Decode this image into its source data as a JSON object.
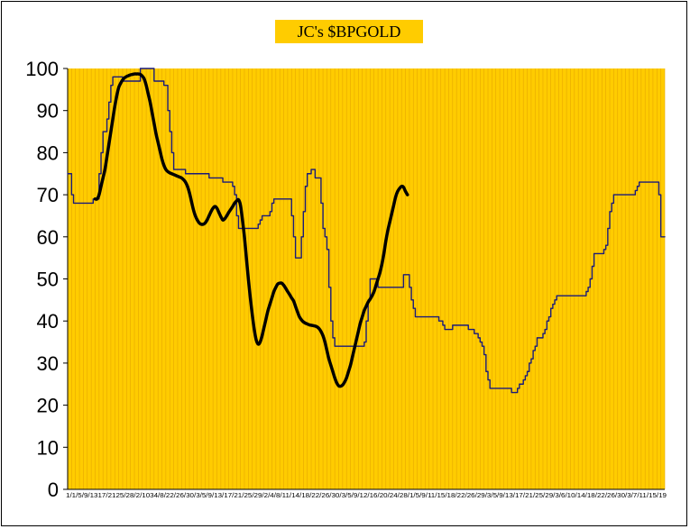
{
  "chart_data": {
    "type": "line",
    "title": "JC's $BPGOLD",
    "xlabel": "",
    "ylabel": "",
    "ylim": [
      0,
      100
    ],
    "yticks": [
      0,
      10,
      20,
      30,
      40,
      50,
      60,
      70,
      80,
      90,
      100
    ],
    "xtick_labels": [
      "1/1/5/9/1317/2125/28/2/1034/8/22/26/30/3/5/9/13/17/21/25/29/2/4/8/11/14/18/22/26/30/3/5/9/12/16/20/24/28/1/5/9/11/15/18/22/26/29/3/5/9/13/17/21/25/29/3/6/10/14/18/22/26/30/3/7/11/15/19"
    ],
    "plot_background": "#ffcc00",
    "grid_color": "#e6a800",
    "series": [
      {
        "name": "",
        "color": "#1a1a7a",
        "style": "thin-step",
        "values": [
          75,
          75,
          70,
          68,
          68,
          68,
          68,
          68,
          68,
          68,
          68,
          68,
          68,
          69,
          69,
          69,
          75,
          80,
          85,
          85,
          88,
          92,
          96,
          98,
          98,
          98,
          98,
          98,
          97,
          97,
          97,
          97,
          97,
          97,
          97,
          97,
          97,
          100,
          100,
          100,
          100,
          100,
          100,
          100,
          97,
          97,
          97,
          97,
          97,
          96,
          96,
          90,
          85,
          80,
          76,
          76,
          76,
          76,
          76,
          76,
          75,
          75,
          75,
          75,
          75,
          75,
          75,
          75,
          75,
          75,
          75,
          75,
          74,
          74,
          74,
          74,
          74,
          74,
          74,
          73,
          73,
          73,
          73,
          73,
          72,
          70,
          65,
          62,
          62,
          62,
          62,
          62,
          62,
          62,
          62,
          62,
          62,
          63,
          64,
          65,
          65,
          65,
          65,
          66,
          68,
          69,
          69,
          69,
          69,
          69,
          69,
          69,
          69,
          69,
          65,
          60,
          55,
          55,
          55,
          60,
          66,
          72,
          75,
          75,
          76,
          76,
          74,
          74,
          74,
          68,
          62,
          60,
          57,
          48,
          40,
          36,
          34,
          34,
          34,
          34,
          34,
          34,
          34,
          34,
          34,
          34,
          34,
          34,
          34,
          34,
          34,
          35,
          40,
          45,
          50,
          50,
          50,
          50,
          48,
          48,
          48,
          48,
          48,
          48,
          48,
          48,
          48,
          48,
          48,
          48,
          48,
          51,
          51,
          51,
          48,
          45,
          43,
          41,
          41,
          41,
          41,
          41,
          41,
          41,
          41,
          41,
          41,
          41,
          41,
          40,
          40,
          39,
          38,
          38,
          38,
          38,
          39,
          39,
          39,
          39,
          39,
          39,
          39,
          39,
          38,
          38,
          38,
          37,
          37,
          36,
          35,
          34,
          32,
          28,
          26,
          24,
          24,
          24,
          24,
          24,
          24,
          24,
          24,
          24,
          24,
          24,
          23,
          23,
          23,
          24,
          25,
          25,
          26,
          27,
          28,
          30,
          31,
          33,
          34,
          36,
          36,
          36,
          37,
          38,
          40,
          41,
          43,
          44,
          45,
          46,
          46,
          46,
          46,
          46,
          46,
          46,
          46,
          46,
          46,
          46,
          46,
          46,
          46,
          46,
          47,
          48,
          50,
          53,
          56,
          56,
          56,
          56,
          56,
          57,
          58,
          62,
          66,
          68,
          70,
          70,
          70,
          70,
          70,
          70,
          70,
          70,
          70,
          70,
          70,
          71,
          72,
          73,
          73,
          73,
          73,
          73,
          73,
          73,
          73,
          73,
          73,
          70,
          60,
          60,
          60
        ]
      },
      {
        "name": "",
        "color": "#000000",
        "style": "thick-smooth",
        "values": [
          null,
          null,
          null,
          null,
          null,
          null,
          null,
          null,
          null,
          null,
          null,
          null,
          null,
          null,
          69,
          69,
          70,
          72,
          74,
          76,
          79,
          82,
          85,
          88,
          91,
          93.5,
          95.5,
          96.5,
          97.3,
          97.8,
          98.1,
          98.3,
          98.5,
          98.6,
          98.7,
          98.7,
          98.7,
          98.6,
          98.2,
          97.5,
          96,
          94,
          92,
          89.5,
          87,
          84.5,
          82.5,
          80.5,
          78.5,
          77,
          76,
          75.5,
          75.2,
          75,
          74.8,
          74.6,
          74.4,
          74.2,
          74,
          73.6,
          73,
          72,
          70.5,
          68.5,
          66.5,
          65,
          64,
          63.3,
          63,
          63,
          63.3,
          64,
          65,
          66,
          66.8,
          67.2,
          66.8,
          65.8,
          64.8,
          64,
          64.3,
          65,
          65.8,
          66.5,
          67.2,
          68,
          68.5,
          68.8,
          67.5,
          64,
          60,
          55,
          50,
          45.5,
          41.5,
          38,
          35.5,
          34.5,
          35,
          36.5,
          38.5,
          40.5,
          42.5,
          44,
          45.5,
          47,
          48,
          48.8,
          49,
          49,
          48.5,
          47.8,
          47,
          46.3,
          45.5,
          44.8,
          43.5,
          42.2,
          41,
          40.3,
          39.8,
          39.5,
          39.3,
          39.1,
          39,
          38.9,
          38.8,
          38.6,
          38.2,
          37.5,
          36.5,
          35,
          33,
          31,
          29.5,
          28,
          26.5,
          25.3,
          24.6,
          24.5,
          24.8,
          25.5,
          26.5,
          28,
          29.5,
          31.5,
          33.5,
          35.5,
          37.5,
          39.5,
          41,
          42.5,
          43.5,
          44.5,
          45.2,
          46,
          47,
          48.5,
          50,
          51.5,
          53.5,
          56,
          59,
          61.5,
          63.5,
          65.5,
          67.5,
          69.5,
          70.8,
          71.5,
          72,
          71.8,
          70.8,
          70
        ]
      }
    ]
  }
}
